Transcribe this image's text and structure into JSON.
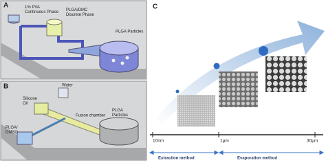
{
  "panels": {
    "A": {
      "letter": "A",
      "labels": [
        "1% PVA\nContinuous Phase",
        "PLGA/DMC\nDiscrete Phase",
        "PLGA Particles"
      ]
    },
    "B": {
      "letter": "B",
      "labels": [
        "Silicone\nOil",
        "Water",
        "Fusion chamber",
        "PLGA/\nDMSO",
        "PLGA\nParticles"
      ]
    },
    "C": {
      "letter": "C",
      "scale": [
        "10nm",
        "1μm",
        "30μm"
      ],
      "methods": [
        "Extraction method",
        "Evaporation method"
      ]
    }
  }
}
